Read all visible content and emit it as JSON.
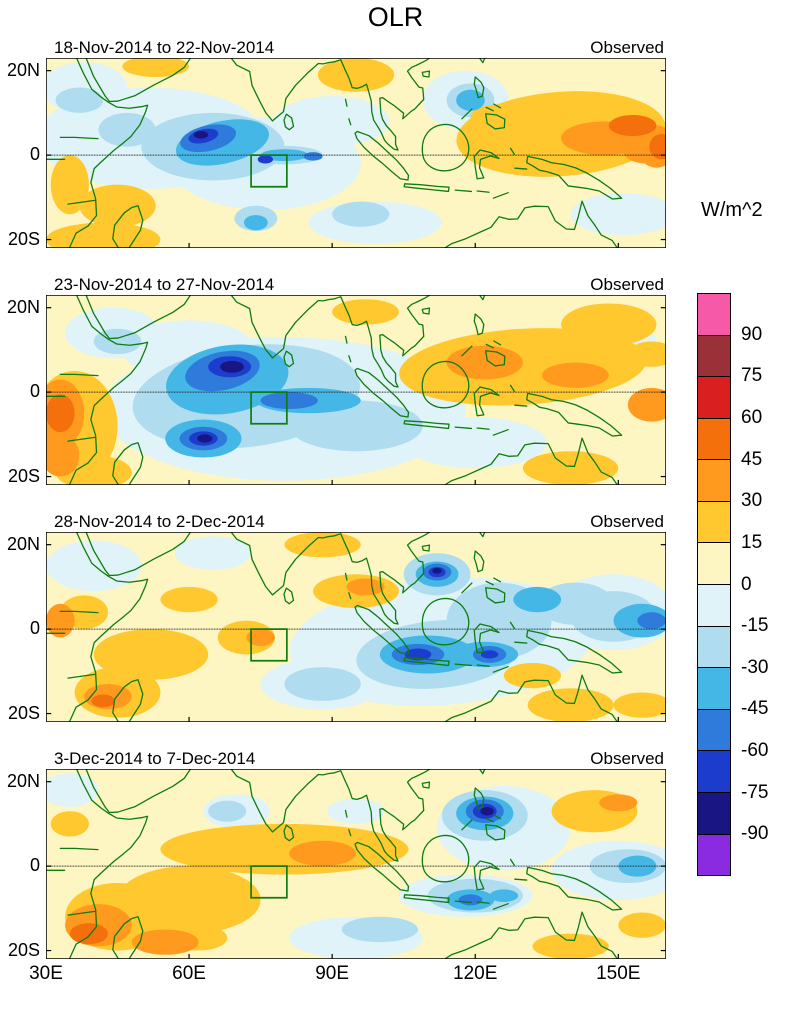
{
  "title": "OLR",
  "chart_data": {
    "type": "heatmap",
    "title": "OLR",
    "units": "W/m^2",
    "x_ticks": [
      "30E",
      "60E",
      "90E",
      "120E",
      "150E"
    ],
    "x_tick_lons": [
      30,
      60,
      90,
      120,
      150
    ],
    "y_ticks": [
      "20N",
      "0",
      "20S"
    ],
    "y_tick_lats": [
      20,
      0,
      -20
    ],
    "lon_range": [
      30,
      160
    ],
    "lat_range": [
      -22,
      23
    ],
    "map_outline_color": "#0e7c0e",
    "box_region": {
      "lon_min": 73,
      "lon_max": 80.5,
      "lat_min": -7.5,
      "lat_max": 0
    },
    "colorbar": {
      "units": "W/m^2",
      "tick_labels": [
        "90",
        "75",
        "60",
        "45",
        "30",
        "15",
        "0",
        "-15",
        "-30",
        "-45",
        "-60",
        "-75",
        "-90"
      ],
      "thresholds": [
        -90,
        -75,
        -60,
        -45,
        -30,
        -15,
        0,
        15,
        30,
        45,
        60,
        75,
        90
      ],
      "colors_ascending": [
        "#8A2BE2",
        "#191583",
        "#1C3CCD",
        "#2E7BDB",
        "#45B7E6",
        "#AFDCEF",
        "#DFF3F8",
        "#FDF6C3",
        "#FFC82E",
        "#FF9A1F",
        "#F4700C",
        "#DA1F1F",
        "#9A3138",
        "#F659A8"
      ]
    },
    "panels": [
      {
        "date_range": "18-Nov-2014 to 22-Nov-2014",
        "source": "Observed",
        "anomalies": [
          [
            52,
            4,
            24,
            12,
            -7
          ],
          [
            76,
            -2,
            20,
            11,
            -7
          ],
          [
            99,
            -16,
            14,
            5,
            -7
          ],
          [
            118,
            13,
            9,
            7,
            -7
          ],
          [
            151,
            -14,
            11,
            5,
            -7
          ],
          [
            38,
            16,
            9,
            6,
            -7
          ],
          [
            90,
            8,
            12,
            6,
            -7
          ],
          [
            65,
            2,
            15,
            8,
            -22
          ],
          [
            37,
            13,
            5,
            3,
            -22
          ],
          [
            80,
            0,
            8,
            2.2,
            -22
          ],
          [
            119,
            13,
            5,
            4,
            -22
          ],
          [
            74,
            -15,
            4.5,
            3,
            -22
          ],
          [
            96,
            -14,
            6,
            3,
            -22
          ],
          [
            47,
            6,
            6,
            4,
            -22
          ],
          [
            67,
            3,
            10,
            5,
            -37,
            -15
          ],
          [
            80,
            0,
            5,
            1.4,
            -37
          ],
          [
            119,
            13,
            3,
            2.5,
            -37
          ],
          [
            74,
            -16,
            2.5,
            1.8,
            -37
          ],
          [
            64,
            4,
            6,
            3,
            -52,
            -15
          ],
          [
            86,
            -0.3,
            2,
            1,
            -52
          ],
          [
            63,
            4.5,
            3.2,
            1.6,
            -67,
            -15
          ],
          [
            76,
            -1,
            1.6,
            1,
            -67
          ],
          [
            62.5,
            4.8,
            1.5,
            0.9,
            -82
          ],
          [
            138,
            5,
            22,
            10,
            22,
            -5
          ],
          [
            147,
            4,
            9,
            4,
            37
          ],
          [
            156,
            1,
            5,
            3,
            37
          ],
          [
            125,
            9,
            6,
            3,
            22
          ],
          [
            53,
            21,
            7,
            2.5,
            22
          ],
          [
            95,
            19,
            8,
            4,
            22
          ],
          [
            35,
            -7,
            4,
            7,
            22
          ],
          [
            45,
            -12,
            8,
            5,
            22
          ],
          [
            42,
            -20,
            12,
            4,
            22
          ],
          [
            158,
            2,
            4,
            5,
            37
          ],
          [
            159,
            2,
            2.5,
            3,
            52
          ],
          [
            153,
            7,
            5,
            2.5,
            52
          ]
        ]
      },
      {
        "date_range": "23-Nov-2014 to 27-Nov-2014",
        "source": "Observed",
        "anomalies": [
          [
            80,
            -4,
            38,
            17,
            -7
          ],
          [
            120,
            -12,
            15,
            6,
            -7
          ],
          [
            44,
            14,
            10,
            6,
            -7
          ],
          [
            148,
            12,
            10,
            5,
            -7
          ],
          [
            60,
            10,
            14,
            7,
            -7
          ],
          [
            72,
            -1,
            24,
            12,
            -22,
            -8
          ],
          [
            95,
            -8,
            14,
            6,
            -22
          ],
          [
            45,
            12,
            5,
            3,
            -22
          ],
          [
            68,
            3,
            13,
            8,
            -37,
            -12
          ],
          [
            85,
            -2,
            11,
            3,
            -37
          ],
          [
            63,
            -11,
            8,
            4.5,
            -37
          ],
          [
            67,
            5,
            8,
            4.5,
            -52,
            -15
          ],
          [
            63,
            -11,
            5,
            2.8,
            -52
          ],
          [
            81,
            -2,
            6,
            2,
            -52
          ],
          [
            68.5,
            6,
            4.5,
            2.5,
            -67
          ],
          [
            63,
            -11,
            3,
            1.7,
            -67
          ],
          [
            69,
            6,
            2.5,
            1.4,
            -82
          ],
          [
            63.3,
            -11,
            1.6,
            1,
            -82
          ],
          [
            36,
            -8,
            9,
            13,
            22
          ],
          [
            33,
            -5,
            5,
            8,
            37
          ],
          [
            33,
            -5,
            3,
            4.5,
            52
          ],
          [
            33,
            -15,
            4,
            5,
            37
          ],
          [
            40,
            -19,
            8,
            4,
            22
          ],
          [
            130,
            6,
            26,
            9,
            22,
            -4
          ],
          [
            122,
            7,
            8,
            4,
            37
          ],
          [
            141,
            4,
            7,
            3,
            37
          ],
          [
            157,
            -3,
            5,
            4,
            37
          ],
          [
            148,
            16,
            10,
            5,
            22
          ],
          [
            97,
            19,
            7,
            3,
            22
          ],
          [
            140,
            -18,
            10,
            4,
            22
          ],
          [
            157,
            9,
            5,
            3,
            22
          ]
        ]
      },
      {
        "date_range": "28-Nov-2014 to 2-Dec-2014",
        "source": "Observed",
        "anomalies": [
          [
            113,
            -3,
            32,
            15,
            -7,
            -5
          ],
          [
            88,
            -13,
            13,
            6,
            -7
          ],
          [
            40,
            15,
            10,
            6,
            -7
          ],
          [
            149,
            4,
            13,
            9,
            -7
          ],
          [
            65,
            18,
            8,
            4,
            -7
          ],
          [
            112,
            -6,
            17,
            8,
            -22,
            -6
          ],
          [
            125,
            2,
            11,
            9,
            -22
          ],
          [
            88,
            -13,
            8,
            4,
            -22
          ],
          [
            149,
            3,
            9,
            6,
            -22
          ],
          [
            112,
            13,
            7,
            5,
            -22
          ],
          [
            141,
            6,
            8,
            5,
            -22
          ],
          [
            110,
            -6,
            10,
            4.5,
            -37
          ],
          [
            122,
            -6,
            7,
            3,
            -37
          ],
          [
            112,
            13,
            4.5,
            3,
            -37
          ],
          [
            155,
            2,
            6,
            4,
            -37
          ],
          [
            133,
            7,
            5,
            3,
            -37
          ],
          [
            108,
            -6,
            5.5,
            2.5,
            -52
          ],
          [
            123,
            -6,
            3.5,
            2,
            -52
          ],
          [
            112,
            13.5,
            3,
            2,
            -52
          ],
          [
            157,
            2,
            3,
            2,
            -52
          ],
          [
            108,
            -6,
            2.8,
            1.4,
            -67
          ],
          [
            112,
            13.5,
            1.8,
            1.2,
            -67
          ],
          [
            123,
            -6,
            1.8,
            1,
            -67
          ],
          [
            112,
            13.8,
            1,
            0.7,
            -82
          ],
          [
            52,
            -6,
            12,
            6,
            22
          ],
          [
            60,
            7,
            6,
            3,
            22
          ],
          [
            72,
            -2,
            6,
            4,
            22
          ],
          [
            75,
            -2,
            3,
            2,
            37
          ],
          [
            45,
            -15,
            9,
            6,
            22
          ],
          [
            43,
            -16,
            5,
            3,
            37
          ],
          [
            42,
            -17,
            2.5,
            1.5,
            52
          ],
          [
            38,
            4,
            5,
            4,
            22
          ],
          [
            33,
            2,
            3,
            4,
            37
          ],
          [
            95,
            9,
            9,
            4,
            22
          ],
          [
            97,
            10,
            4,
            2,
            37
          ],
          [
            140,
            -18,
            9,
            4,
            22
          ],
          [
            155,
            -18,
            6,
            3,
            22
          ],
          [
            132,
            -11,
            6,
            3,
            22
          ],
          [
            88,
            20,
            8,
            3,
            22
          ]
        ]
      },
      {
        "date_range": "3-Dec-2014 to 7-Dec-2014",
        "source": "Observed",
        "anomalies": [
          [
            126,
            9,
            14,
            10,
            -7
          ],
          [
            118,
            -7,
            14,
            5,
            -7
          ],
          [
            150,
            -1,
            14,
            7,
            -7
          ],
          [
            95,
            -17,
            14,
            5,
            -7
          ],
          [
            70,
            13,
            7,
            4,
            -7
          ],
          [
            35,
            18,
            6,
            4,
            -7
          ],
          [
            95,
            13,
            6,
            3,
            -7
          ],
          [
            122,
            12,
            9,
            6,
            -22
          ],
          [
            120,
            -7,
            10,
            4,
            -22
          ],
          [
            152,
            0,
            8,
            4,
            -22
          ],
          [
            100,
            -15,
            8,
            3,
            -22
          ],
          [
            68,
            13,
            4,
            2.5,
            -22
          ],
          [
            122,
            12.5,
            6,
            4,
            -37
          ],
          [
            119,
            -8,
            5,
            2.5,
            -37
          ],
          [
            154,
            0,
            4,
            2.5,
            -37
          ],
          [
            126,
            -7,
            3,
            1.5,
            -37
          ],
          [
            122,
            13,
            4,
            2.8,
            -52
          ],
          [
            119,
            -8,
            2.5,
            1.3,
            -52
          ],
          [
            122,
            13,
            2.5,
            1.8,
            -67
          ],
          [
            122.5,
            13,
            1.4,
            1,
            -82
          ],
          [
            45,
            -12,
            11,
            8,
            22
          ],
          [
            41,
            -14,
            7,
            5,
            37
          ],
          [
            39,
            -16,
            4,
            2.5,
            52
          ],
          [
            80,
            4,
            26,
            6,
            22
          ],
          [
            88,
            3,
            7,
            3,
            37
          ],
          [
            60,
            -8,
            15,
            8,
            22
          ],
          [
            55,
            -18,
            7,
            3,
            37
          ],
          [
            62,
            -17,
            6,
            3,
            22
          ],
          [
            35,
            10,
            4,
            3,
            22
          ],
          [
            145,
            13,
            9,
            5,
            22
          ],
          [
            150,
            15,
            4,
            2,
            37
          ],
          [
            140,
            -19,
            8,
            3,
            22
          ],
          [
            155,
            -14,
            5,
            3,
            22
          ]
        ]
      }
    ]
  }
}
